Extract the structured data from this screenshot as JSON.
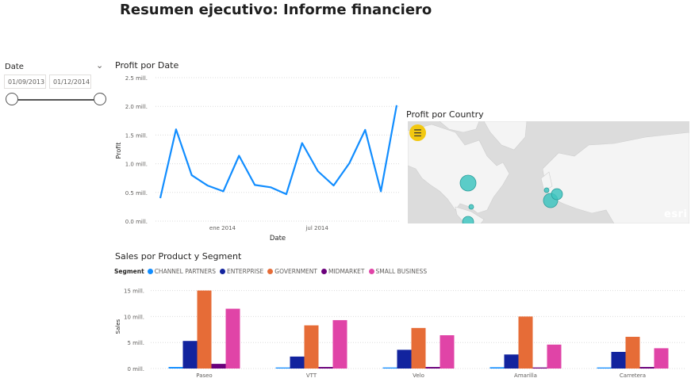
{
  "page": {
    "title": "Resumen ejecutivo: Informe financiero"
  },
  "slicer": {
    "label": "Date",
    "start": "01/09/2013",
    "end": "01/12/2014",
    "range_fraction": [
      0,
      1
    ]
  },
  "profit_by_date": {
    "title": "Profit por Date",
    "chart_data": {
      "type": "line",
      "xlabel": "Date",
      "ylabel": "Profit",
      "yticks": [
        "0.0 mill.",
        "0.5 mill.",
        "1.0 mill.",
        "1.5 mill.",
        "2.0 mill.",
        "2.5 mill."
      ],
      "ylim": [
        0,
        2.5
      ],
      "xticks": [
        {
          "label": "ene 2014",
          "index": 4
        },
        {
          "label": "jul 2014",
          "index": 10
        }
      ],
      "x": [
        "2013-09",
        "2013-10",
        "2013-11",
        "2013-12",
        "2014-01",
        "2014-02",
        "2014-03",
        "2014-04",
        "2014-05",
        "2014-06",
        "2014-07",
        "2014-08",
        "2014-09",
        "2014-10",
        "2014-11",
        "2014-12"
      ],
      "series": [
        {
          "values": [
            0.4,
            1.6,
            0.8,
            0.62,
            0.52,
            1.14,
            0.63,
            0.59,
            0.47,
            1.36,
            0.87,
            0.62,
            1.01,
            1.59,
            0.52,
            2.02
          ]
        }
      ],
      "color": "#118dff"
    }
  },
  "profit_by_country": {
    "title": "Profit por Country",
    "map_credit": "esri",
    "bubble_color": "#40c4c0"
  },
  "sales_by_product_segment": {
    "title": "Sales por Product y Segment",
    "legend_title": "Segment",
    "chart_data": {
      "type": "bar",
      "ylabel": "Sales",
      "yticks": [
        "0 mill.",
        "5 mill.",
        "10 mill.",
        "15 mill."
      ],
      "ylim": [
        0,
        16
      ],
      "categories": [
        "Paseo",
        "VTT",
        "Velo",
        "Amarilla",
        "Carretera"
      ],
      "series": [
        {
          "name": "CHANNEL PARTNERS",
          "color": "#118dff",
          "values": [
            0.3,
            0.2,
            0.2,
            0.25,
            0.2
          ]
        },
        {
          "name": "ENTERPRISE",
          "color": "#12239e",
          "values": [
            5.3,
            2.3,
            3.6,
            2.7,
            3.2
          ]
        },
        {
          "name": "GOVERNMENT",
          "color": "#e66c37",
          "values": [
            15.0,
            8.3,
            7.8,
            10.0,
            6.1
          ]
        },
        {
          "name": "MIDMARKET",
          "color": "#6b007b",
          "values": [
            0.9,
            0.3,
            0.3,
            0.2,
            0.3
          ]
        },
        {
          "name": "SMALL BUSINESS",
          "color": "#e044a7",
          "values": [
            11.5,
            9.3,
            6.4,
            4.6,
            3.9
          ]
        }
      ]
    }
  }
}
